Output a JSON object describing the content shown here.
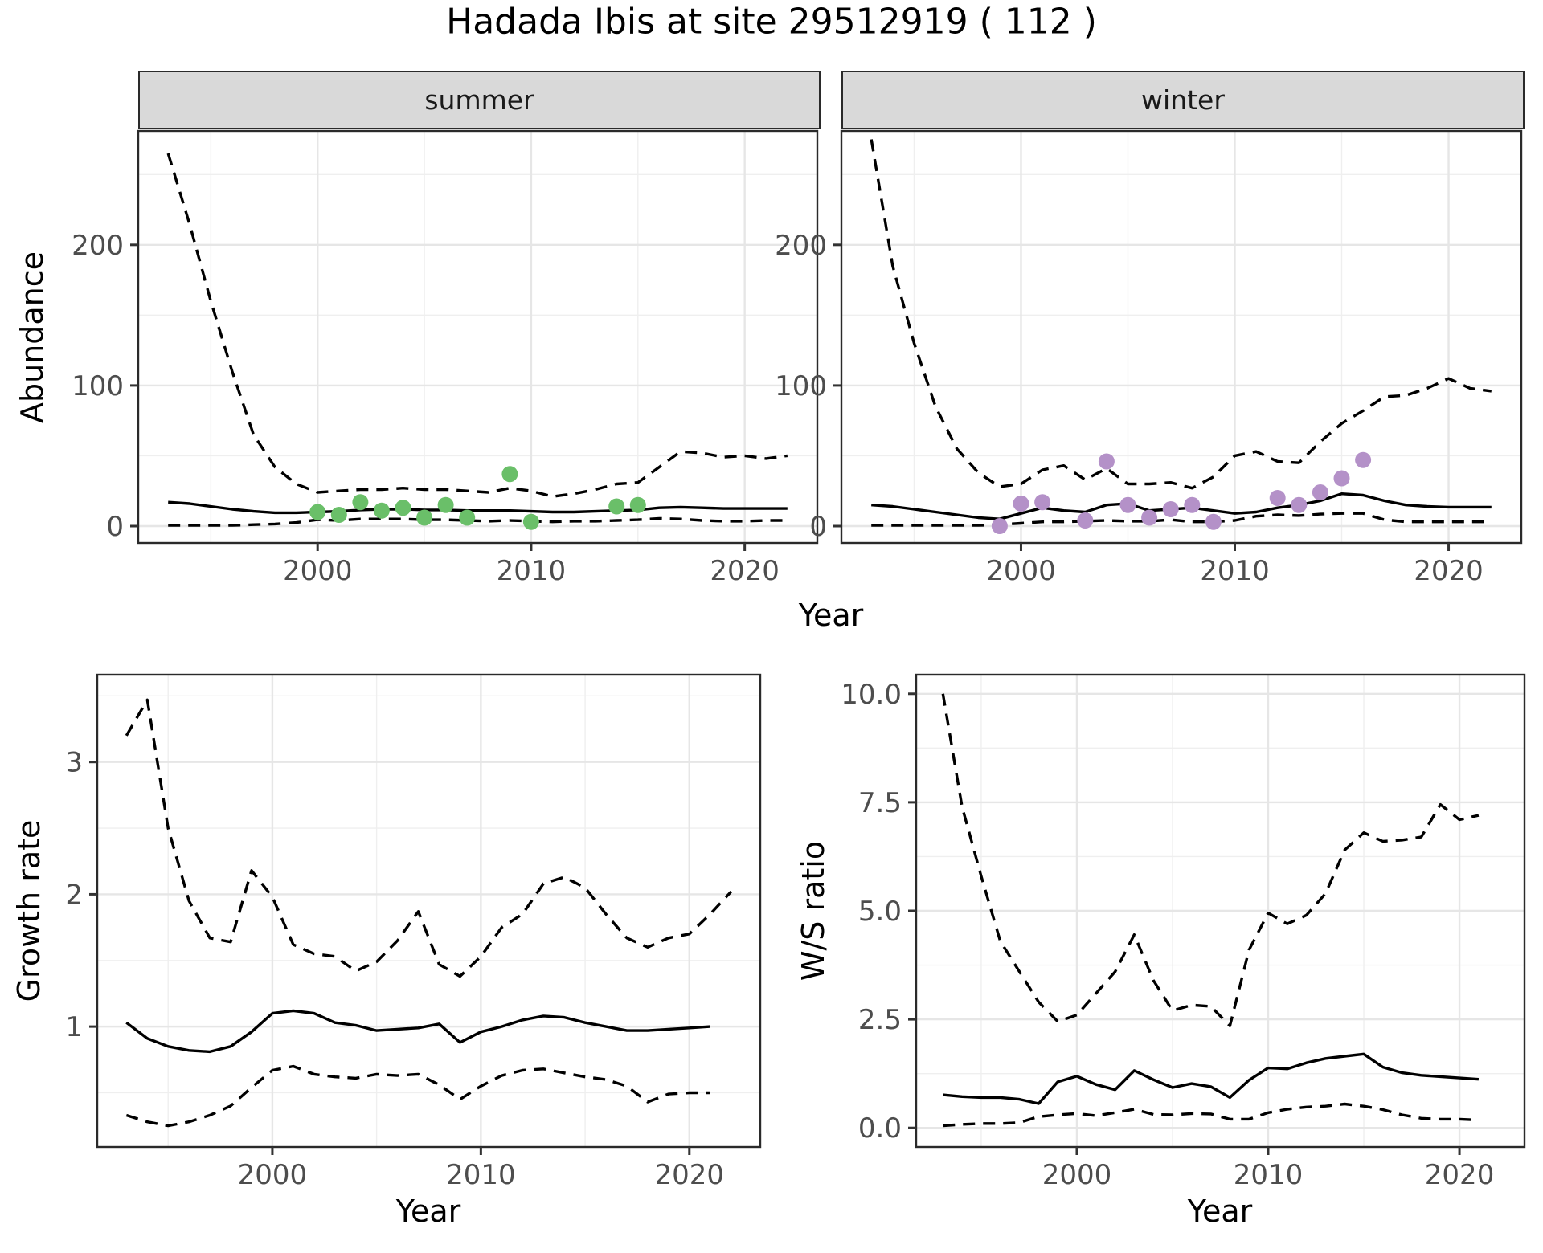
{
  "title": "Hadada Ibis at site 29512919 ( 112 )",
  "facets": {
    "summer": "summer",
    "winter": "winter"
  },
  "axis_labels": {
    "x": "Year",
    "y_abundance": "Abundance",
    "y_growth": "Growth rate",
    "y_ws": "W/S ratio"
  },
  "colors": {
    "summer_point": "#6abf69",
    "winter_point": "#b491c8",
    "line": "#000000",
    "grid_major": "#e6e6e6",
    "grid_minor": "#efefef",
    "strip_bg": "#d9d9d9",
    "panel_border": "#2a2a2a",
    "tick_text": "#4d4d4d"
  },
  "chart_data": [
    {
      "id": "abundance_summer",
      "type": "line",
      "facet": "summer",
      "xlabel": "Year",
      "ylabel": "Abundance",
      "xlim": [
        1991.6,
        2023.4
      ],
      "ylim": [
        -12,
        281
      ],
      "x_ticks": [
        2000,
        2010,
        2020
      ],
      "x_tick_labels": [
        "2000",
        "2010",
        "2020"
      ],
      "x_minor": [
        1995,
        2005,
        2015
      ],
      "y_ticks": [
        0,
        100,
        200
      ],
      "y_tick_labels": [
        "0",
        "100",
        "200"
      ],
      "y_minor": [
        50,
        150,
        250
      ],
      "grid": true,
      "legend": "none",
      "series": [
        {
          "name": "upper_ci",
          "style": "dashed",
          "x": [
            1993,
            1994,
            1995,
            1996,
            1997,
            1998,
            1999,
            2000,
            2001,
            2002,
            2003,
            2004,
            2005,
            2006,
            2007,
            2008,
            2009,
            2010,
            2011,
            2012,
            2013,
            2014,
            2015,
            2016,
            2017,
            2018,
            2019,
            2020,
            2021,
            2022
          ],
          "y": [
            265,
            215,
            160,
            110,
            65,
            42,
            30,
            24,
            25,
            26,
            26,
            27,
            26,
            26,
            25,
            24,
            27,
            25,
            21,
            23,
            26,
            30,
            31,
            42,
            53,
            52,
            49,
            50,
            48,
            50
          ]
        },
        {
          "name": "median",
          "style": "solid",
          "x": [
            1993,
            1994,
            1995,
            1996,
            1997,
            1998,
            1999,
            2000,
            2001,
            2002,
            2003,
            2004,
            2005,
            2006,
            2007,
            2008,
            2009,
            2010,
            2011,
            2012,
            2013,
            2014,
            2015,
            2016,
            2017,
            2018,
            2019,
            2020,
            2021,
            2022
          ],
          "y": [
            17,
            16,
            14,
            12,
            10.5,
            9.5,
            9.5,
            10,
            10.5,
            11.5,
            12,
            12,
            11.5,
            11.5,
            11,
            11,
            11,
            10.5,
            10,
            10,
            10.5,
            11,
            11.5,
            13,
            13.5,
            13,
            12.5,
            12.5,
            12.5,
            12.5
          ]
        },
        {
          "name": "lower_ci",
          "style": "dashed",
          "x": [
            1993,
            1994,
            1995,
            1996,
            1997,
            1998,
            1999,
            2000,
            2001,
            2002,
            2003,
            2004,
            2005,
            2006,
            2007,
            2008,
            2009,
            2010,
            2011,
            2012,
            2013,
            2014,
            2015,
            2016,
            2017,
            2018,
            2019,
            2020,
            2021,
            2022
          ],
          "y": [
            0.5,
            0.5,
            0.5,
            0.5,
            1,
            1.5,
            2.5,
            4.5,
            4,
            5,
            5,
            5,
            4.5,
            4.5,
            4,
            3.5,
            4,
            3.5,
            3,
            3.5,
            3.5,
            4,
            4.5,
            5.5,
            5,
            4,
            3.5,
            3.5,
            4,
            4
          ]
        }
      ],
      "points": {
        "name": "observed_summer",
        "color": "#6abf69",
        "x": [
          2000,
          2001,
          2002,
          2003,
          2004,
          2005,
          2006,
          2007,
          2009,
          2010,
          2014,
          2015
        ],
        "y": [
          10,
          8,
          17,
          11,
          13,
          6,
          15,
          6,
          37,
          3,
          14,
          15
        ]
      }
    },
    {
      "id": "abundance_winter",
      "type": "line",
      "facet": "winter",
      "xlabel": "Year",
      "ylabel": "Abundance",
      "xlim": [
        1991.6,
        2023.4
      ],
      "ylim": [
        -12,
        281
      ],
      "x_ticks": [
        2000,
        2010,
        2020
      ],
      "x_tick_labels": [
        "2000",
        "2010",
        "2020"
      ],
      "x_minor": [
        1995,
        2005,
        2015
      ],
      "y_ticks": [
        0,
        100,
        200
      ],
      "y_tick_labels": [
        "0",
        "100",
        "200"
      ],
      "y_minor": [
        50,
        150,
        250
      ],
      "grid": true,
      "legend": "none",
      "series": [
        {
          "name": "upper_ci",
          "style": "dashed",
          "x": [
            1993,
            1994,
            1995,
            1996,
            1997,
            1998,
            1999,
            2000,
            2001,
            2002,
            2003,
            2004,
            2005,
            2006,
            2007,
            2008,
            2009,
            2010,
            2011,
            2012,
            2013,
            2014,
            2015,
            2016,
            2017,
            2018,
            2019,
            2020,
            2021,
            2022
          ],
          "y": [
            275,
            185,
            130,
            85,
            55,
            38,
            28,
            30,
            40,
            43,
            33,
            41,
            30,
            30,
            31,
            27,
            35,
            50,
            53,
            46,
            45,
            60,
            73,
            82,
            92,
            93,
            98,
            105,
            98,
            96
          ]
        },
        {
          "name": "median",
          "style": "solid",
          "x": [
            1993,
            1994,
            1995,
            1996,
            1997,
            1998,
            1999,
            2000,
            2001,
            2002,
            2003,
            2004,
            2005,
            2006,
            2007,
            2008,
            2009,
            2010,
            2011,
            2012,
            2013,
            2014,
            2015,
            2016,
            2017,
            2018,
            2019,
            2020,
            2021,
            2022
          ],
          "y": [
            15,
            14,
            12,
            10,
            8,
            6,
            5,
            9,
            13,
            11,
            10,
            15,
            16,
            11,
            12,
            13,
            11,
            9,
            10,
            13,
            15,
            18,
            23,
            22,
            18,
            15,
            14,
            13.5,
            13.5,
            13.5
          ]
        },
        {
          "name": "lower_ci",
          "style": "dashed",
          "x": [
            1993,
            1994,
            1995,
            1996,
            1997,
            1998,
            1999,
            2000,
            2001,
            2002,
            2003,
            2004,
            2005,
            2006,
            2007,
            2008,
            2009,
            2010,
            2011,
            2012,
            2013,
            2014,
            2015,
            2016,
            2017,
            2018,
            2019,
            2020,
            2021,
            2022
          ],
          "y": [
            0.5,
            0.5,
            0.5,
            0.5,
            0.5,
            0.5,
            1,
            2,
            3,
            3,
            3.5,
            4,
            3.5,
            3.5,
            4.5,
            3,
            3,
            4,
            7,
            8,
            7.5,
            8.5,
            9,
            9,
            4.5,
            3,
            3,
            3,
            3,
            3
          ]
        }
      ],
      "points": {
        "name": "observed_winter",
        "color": "#b491c8",
        "x": [
          1999,
          2000,
          2001,
          2003,
          2004,
          2005,
          2006,
          2007,
          2008,
          2009,
          2012,
          2013,
          2014,
          2015,
          2016
        ],
        "y": [
          0,
          16,
          17,
          4,
          46,
          15,
          6,
          12,
          15,
          3,
          20,
          15,
          24,
          34,
          47
        ]
      }
    },
    {
      "id": "growth_rate",
      "type": "line",
      "facet": null,
      "xlabel": "Year",
      "ylabel": "Growth rate",
      "xlim": [
        1991.6,
        2023.4
      ],
      "ylim": [
        0.09,
        3.66
      ],
      "x_ticks": [
        2000,
        2010,
        2020
      ],
      "x_tick_labels": [
        "2000",
        "2010",
        "2020"
      ],
      "x_minor": [
        1995,
        2005,
        2015
      ],
      "y_ticks": [
        1,
        2,
        3
      ],
      "y_tick_labels": [
        "1",
        "2",
        "3"
      ],
      "y_minor": [
        0.5,
        1.5,
        2.5,
        3.5
      ],
      "grid": true,
      "legend": "none",
      "series": [
        {
          "name": "upper_ci",
          "style": "dashed",
          "x": [
            1993,
            1994,
            1995,
            1996,
            1997,
            1998,
            1999,
            2000,
            2001,
            2002,
            2003,
            2004,
            2005,
            2006,
            2007,
            2008,
            2009,
            2010,
            2011,
            2012,
            2013,
            2014,
            2015,
            2016,
            2017,
            2018,
            2019,
            2020,
            2021,
            2022
          ],
          "y": [
            3.2,
            3.47,
            2.5,
            1.95,
            1.67,
            1.64,
            2.18,
            1.98,
            1.62,
            1.55,
            1.53,
            1.42,
            1.49,
            1.65,
            1.87,
            1.47,
            1.38,
            1.53,
            1.75,
            1.85,
            2.08,
            2.13,
            2.05,
            1.85,
            1.67,
            1.6,
            1.67,
            1.7,
            1.85,
            2.02
          ]
        },
        {
          "name": "median",
          "style": "solid",
          "x": [
            1993,
            1994,
            1995,
            1996,
            1997,
            1998,
            1999,
            2000,
            2001,
            2002,
            2003,
            2004,
            2005,
            2006,
            2007,
            2008,
            2009,
            2010,
            2011,
            2012,
            2013,
            2014,
            2015,
            2016,
            2017,
            2018,
            2019,
            2020,
            2021
          ],
          "y": [
            1.03,
            0.91,
            0.85,
            0.82,
            0.81,
            0.85,
            0.96,
            1.1,
            1.12,
            1.1,
            1.03,
            1.01,
            0.97,
            0.98,
            0.99,
            1.02,
            0.88,
            0.96,
            1.0,
            1.05,
            1.08,
            1.07,
            1.03,
            1.0,
            0.97,
            0.97,
            0.98,
            0.99,
            1.0
          ]
        },
        {
          "name": "lower_ci",
          "style": "dashed",
          "x": [
            1993,
            1994,
            1995,
            1996,
            1997,
            1998,
            1999,
            2000,
            2001,
            2002,
            2003,
            2004,
            2005,
            2006,
            2007,
            2008,
            2009,
            2010,
            2011,
            2012,
            2013,
            2014,
            2015,
            2016,
            2017,
            2018,
            2019,
            2020,
            2021
          ],
          "y": [
            0.33,
            0.28,
            0.25,
            0.28,
            0.33,
            0.4,
            0.54,
            0.67,
            0.7,
            0.64,
            0.62,
            0.61,
            0.64,
            0.63,
            0.64,
            0.56,
            0.45,
            0.55,
            0.63,
            0.67,
            0.68,
            0.65,
            0.62,
            0.6,
            0.55,
            0.43,
            0.49,
            0.5,
            0.5
          ]
        }
      ],
      "points": null
    },
    {
      "id": "ws_ratio",
      "type": "line",
      "facet": null,
      "xlabel": "Year",
      "ylabel": "W/S ratio",
      "xlim": [
        1991.6,
        2023.4
      ],
      "ylim": [
        -0.44,
        10.44
      ],
      "x_ticks": [
        2000,
        2010,
        2020
      ],
      "x_tick_labels": [
        "2000",
        "2010",
        "2020"
      ],
      "x_minor": [
        1995,
        2005,
        2015
      ],
      "y_ticks": [
        0,
        2.5,
        5,
        7.5,
        10
      ],
      "y_tick_labels": [
        "0.0",
        "2.5",
        "5.0",
        "7.5",
        "10.0"
      ],
      "y_minor": [
        1.25,
        3.75,
        6.25,
        8.75
      ],
      "grid": true,
      "legend": "none",
      "series": [
        {
          "name": "upper_ci",
          "style": "dashed",
          "x": [
            1993,
            1994,
            1995,
            1996,
            1997,
            1998,
            1999,
            2000,
            2001,
            2002,
            2003,
            2004,
            2005,
            2006,
            2007,
            2008,
            2009,
            2010,
            2011,
            2012,
            2013,
            2014,
            2015,
            2016,
            2017,
            2018,
            2019,
            2020,
            2021
          ],
          "y": [
            10.0,
            7.4,
            5.8,
            4.3,
            3.6,
            2.9,
            2.45,
            2.6,
            3.1,
            3.6,
            4.45,
            3.4,
            2.7,
            2.83,
            2.8,
            2.35,
            4.1,
            4.95,
            4.7,
            4.9,
            5.4,
            6.4,
            6.8,
            6.6,
            6.63,
            6.7,
            7.45,
            7.1,
            7.2
          ]
        },
        {
          "name": "median",
          "style": "solid",
          "x": [
            1993,
            1994,
            1995,
            1996,
            1997,
            1998,
            1999,
            2000,
            2001,
            2002,
            2003,
            2004,
            2005,
            2006,
            2007,
            2008,
            2009,
            2010,
            2011,
            2012,
            2013,
            2014,
            2015,
            2016,
            2017,
            2018,
            2019,
            2020,
            2021
          ],
          "y": [
            0.76,
            0.72,
            0.7,
            0.7,
            0.66,
            0.56,
            1.06,
            1.19,
            1.0,
            0.88,
            1.32,
            1.11,
            0.93,
            1.02,
            0.95,
            0.7,
            1.1,
            1.38,
            1.36,
            1.5,
            1.6,
            1.65,
            1.7,
            1.4,
            1.27,
            1.21,
            1.18,
            1.15,
            1.12
          ]
        },
        {
          "name": "lower_ci",
          "style": "dashed",
          "x": [
            1993,
            1994,
            1995,
            1996,
            1997,
            1998,
            1999,
            2000,
            2001,
            2002,
            2003,
            2004,
            2005,
            2006,
            2007,
            2008,
            2009,
            2010,
            2011,
            2012,
            2013,
            2014,
            2015,
            2016,
            2017,
            2018,
            2019,
            2020,
            2021
          ],
          "y": [
            0.05,
            0.08,
            0.1,
            0.1,
            0.12,
            0.26,
            0.3,
            0.33,
            0.28,
            0.35,
            0.43,
            0.31,
            0.3,
            0.33,
            0.32,
            0.2,
            0.2,
            0.35,
            0.43,
            0.48,
            0.5,
            0.55,
            0.5,
            0.42,
            0.3,
            0.22,
            0.2,
            0.2,
            0.18
          ]
        }
      ],
      "points": null
    }
  ]
}
